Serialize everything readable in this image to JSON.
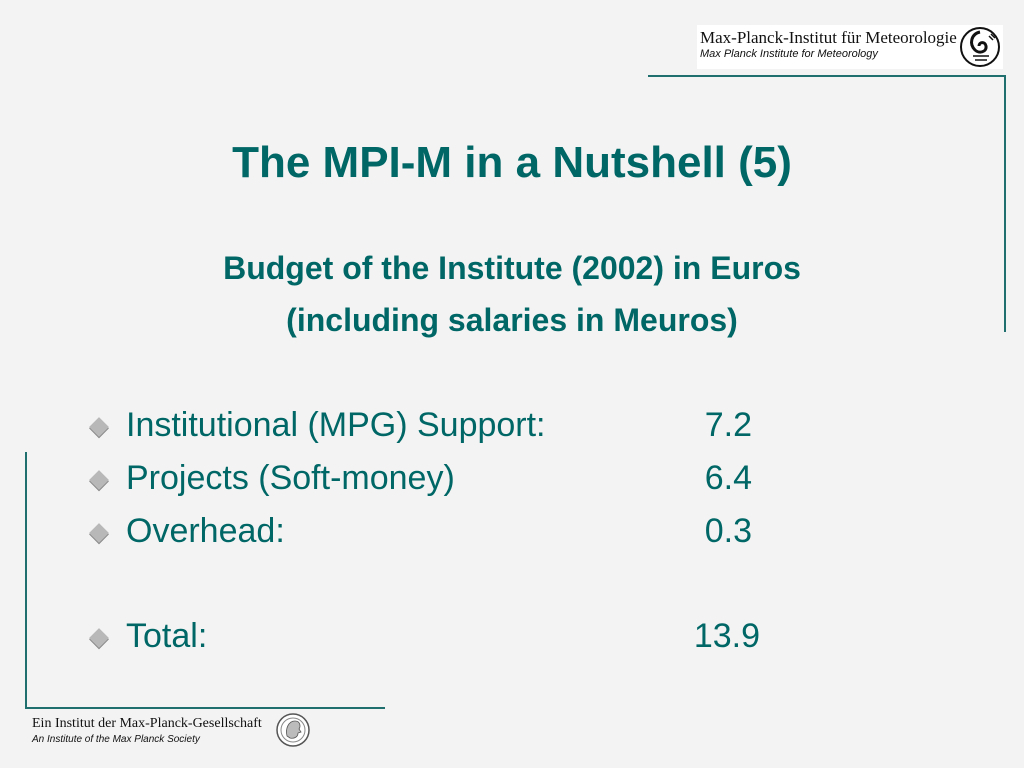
{
  "header": {
    "institute_de": "Max-Planck-Institut für Meteorologie",
    "institute_en": "Max Planck Institute for Meteorology"
  },
  "slide": {
    "title": "The MPI-M in a Nutshell (5)",
    "subtitle_line1": "Budget of the Institute (2002)  in Euros",
    "subtitle_line2": "(including salaries in Meuros)",
    "items": [
      {
        "label": "Institutional (MPG) Support:",
        "value": "7.2"
      },
      {
        "label": "Projects (Soft-money)",
        "value": "6.4"
      },
      {
        "label": "Overhead:",
        "value": "0.3"
      },
      {
        "label": "Total:",
        "value": "13.9"
      }
    ]
  },
  "footer": {
    "society_de": "Ein Institut der Max-Planck-Gesellschaft",
    "society_en": "An Institute of the Max Planck Society"
  },
  "colors": {
    "accent": "#006666",
    "background": "#f3f3f3",
    "frame": "#1f6f6f",
    "bullet": "#b8b8b8"
  },
  "icons": {
    "header_emblem": "mpi-meteorology-logo-icon",
    "footer_emblem": "minerva-head-icon",
    "bullet": "diamond-bullet-icon"
  }
}
